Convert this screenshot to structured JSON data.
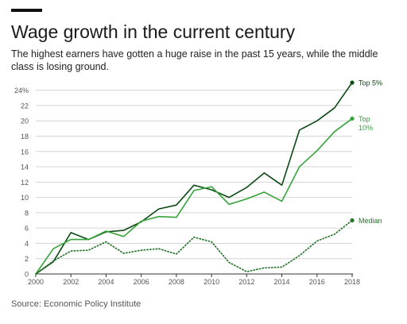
{
  "header": {
    "title": "Wage growth in the current century",
    "subtitle": "The highest earners have gotten a huge raise in the past 15 years, while the middle class is losing ground."
  },
  "footer": {
    "source": "Source: Economic Policy Institute"
  },
  "colors": {
    "top5": "#0b4a14",
    "top10": "#36a33a",
    "median": "#27752c",
    "grid": "#d4d4d4",
    "axis": "#333333",
    "tick_text": "#555555"
  },
  "chart_data": {
    "type": "line",
    "title": "Wage growth in the current century",
    "xlabel": "",
    "ylabel": "",
    "xlim": [
      2000,
      2018
    ],
    "ylim": [
      0,
      25
    ],
    "x_ticks": [
      "2000",
      "2002",
      "2004",
      "2006",
      "2008",
      "2010",
      "2012",
      "2014",
      "2016",
      "2018"
    ],
    "y_ticks": [
      {
        "value": 0,
        "label": "0"
      },
      {
        "value": 2,
        "label": "2"
      },
      {
        "value": 4,
        "label": "4"
      },
      {
        "value": 6,
        "label": "6"
      },
      {
        "value": 8,
        "label": "8"
      },
      {
        "value": 10,
        "label": "10"
      },
      {
        "value": 12,
        "label": "12"
      },
      {
        "value": 14,
        "label": "14"
      },
      {
        "value": 16,
        "label": "16"
      },
      {
        "value": 18,
        "label": "18"
      },
      {
        "value": 20,
        "label": "20"
      },
      {
        "value": 22,
        "label": "22"
      },
      {
        "value": 24,
        "label": "24%"
      }
    ],
    "grid": true,
    "x": [
      2000,
      2001,
      2002,
      2003,
      2004,
      2005,
      2006,
      2007,
      2008,
      2009,
      2010,
      2011,
      2012,
      2013,
      2014,
      2015,
      2016,
      2017,
      2018
    ],
    "series": [
      {
        "name": "Top 5%",
        "label_lines": [
          "Top 5%"
        ],
        "style": "solid",
        "color": "#0b4a14",
        "values": [
          0,
          1.6,
          5.4,
          4.5,
          5.5,
          5.7,
          6.8,
          8.5,
          9.0,
          11.6,
          11.0,
          10.0,
          11.3,
          13.2,
          11.6,
          18.8,
          20.0,
          21.7,
          25.0
        ]
      },
      {
        "name": "Top 10%",
        "label_lines": [
          "Top",
          "10%"
        ],
        "style": "solid",
        "color": "#36a33a",
        "values": [
          0,
          3.3,
          4.5,
          4.5,
          5.6,
          4.9,
          6.9,
          7.5,
          7.4,
          10.9,
          11.4,
          9.1,
          9.8,
          10.7,
          9.5,
          14.0,
          16.1,
          18.6,
          20.3
        ]
      },
      {
        "name": "Median",
        "label_lines": [
          "Median"
        ],
        "style": "dotted",
        "color": "#27752c",
        "values": [
          0,
          1.7,
          3.0,
          3.1,
          4.2,
          2.7,
          3.1,
          3.3,
          2.6,
          4.8,
          4.2,
          1.5,
          0.3,
          0.8,
          0.9,
          2.4,
          4.3,
          5.2,
          7.0
        ]
      }
    ]
  }
}
